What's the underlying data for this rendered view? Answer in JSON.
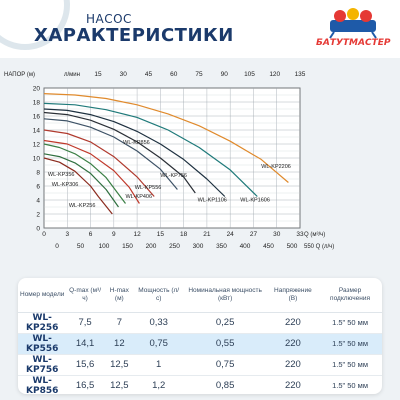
{
  "header": {
    "line1": "НАСОС",
    "line2": "ХАРАКТЕРИСТИКИ",
    "logo_text": "БАТУТМАСТЕР"
  },
  "chart_data": {
    "type": "line",
    "y_axis_label": "НАПОР (м)",
    "top_axis_label": "л/мин",
    "top_axis_ticks": [
      "15",
      "30",
      "45",
      "60",
      "75",
      "90",
      "105",
      "120",
      "135"
    ],
    "x_axis_label_1": "Q (м³/ч)",
    "x_axis_ticks_1": [
      "0",
      "3",
      "6",
      "9",
      "12",
      "15",
      "18",
      "21",
      "24",
      "27",
      "30",
      "33"
    ],
    "x_axis_label_2": "550 Q (л/ч)",
    "x_axis_ticks_2": [
      "0",
      "50",
      "100",
      "150",
      "200",
      "250",
      "300",
      "350",
      "400",
      "450",
      "500"
    ],
    "y_ticks": [
      "0",
      "2",
      "4",
      "6",
      "8",
      "10",
      "12",
      "14",
      "16",
      "18",
      "20"
    ],
    "xlim": [
      0,
      33
    ],
    "ylim": [
      0,
      20
    ],
    "grid": true,
    "series": [
      {
        "name": "WL-KP256",
        "color": "#8b2b1e",
        "label_xy": [
          3.2,
          3.0
        ],
        "x": [
          0,
          2,
          4,
          6,
          7,
          8.8
        ],
        "y": [
          10,
          9.4,
          8.1,
          6,
          4.5,
          2
        ]
      },
      {
        "name": "WL-KP306",
        "color": "#2f6f3f",
        "label_xy": [
          1.0,
          6.0
        ],
        "x": [
          0,
          2,
          4,
          6,
          8,
          9.6
        ],
        "y": [
          10.6,
          10.2,
          9.3,
          7.8,
          5.5,
          3
        ]
      },
      {
        "name": "WL-KP356",
        "color": "#3a7f45",
        "label_xy": [
          0.5,
          7.4
        ],
        "x": [
          0,
          2,
          4,
          6,
          8,
          10.5
        ],
        "y": [
          12,
          11.5,
          10.6,
          9.2,
          7.2,
          3.5
        ]
      },
      {
        "name": "WL-KP406",
        "color": "#c0392b",
        "label_xy": [
          10.5,
          4.3
        ],
        "x": [
          0,
          3,
          6,
          9,
          11,
          12.3
        ],
        "y": [
          12.5,
          12,
          10.6,
          8.2,
          5.8,
          3.5
        ]
      },
      {
        "name": "WL-KP556",
        "color": "#b03a2e",
        "label_xy": [
          11.7,
          5.6
        ],
        "x": [
          0,
          3,
          6,
          9,
          12,
          14.2
        ],
        "y": [
          14,
          13.5,
          12.3,
          10.2,
          7.3,
          4.5
        ]
      },
      {
        "name": "WL-KP756",
        "color": "#3d5266",
        "label_xy": [
          15.0,
          7.3
        ],
        "x": [
          0,
          3,
          6,
          9,
          12,
          15,
          17.2
        ],
        "y": [
          15.6,
          15.3,
          14.4,
          13,
          11,
          8.4,
          5.5
        ]
      },
      {
        "name": "WL-KP856",
        "color": "#2a2f36",
        "label_xy": [
          10.2,
          12.0
        ],
        "x": [
          0,
          3,
          6,
          9,
          12,
          15,
          18,
          19.5
        ],
        "y": [
          16.5,
          16.2,
          15.4,
          14.1,
          12.3,
          10,
          7.3,
          5
        ]
      },
      {
        "name": "WL-KP1106",
        "color": "#1e3140",
        "label_xy": [
          19.8,
          3.8
        ],
        "x": [
          0,
          3,
          6,
          9,
          12,
          15,
          18,
          21,
          23.3
        ],
        "y": [
          17,
          16.8,
          16.2,
          15.2,
          13.8,
          12,
          9.8,
          7,
          4.5
        ]
      },
      {
        "name": "WL-KP1606",
        "color": "#1f7a7a",
        "label_xy": [
          25.3,
          3.8
        ],
        "x": [
          0,
          4,
          8,
          12,
          16,
          20,
          24,
          27.5
        ],
        "y": [
          17.8,
          17.6,
          16.9,
          15.8,
          14,
          11.5,
          8.3,
          4.5
        ]
      },
      {
        "name": "WL-KP2206",
        "color": "#e08a2c",
        "label_xy": [
          28.0,
          8.6
        ],
        "x": [
          0,
          4,
          8,
          12,
          16,
          20,
          24,
          28,
          31.5
        ],
        "y": [
          19.2,
          19,
          18.5,
          17.6,
          16.3,
          14.6,
          12.4,
          9.8,
          6.5
        ]
      }
    ]
  },
  "table": {
    "headers": [
      "Номер модели",
      "Q-max (м³/ч)",
      "H-max (м)",
      "Мощность (л/с)",
      "Номинальная мощность (кВт)",
      "Напряжение (В)",
      "Размер подключения"
    ],
    "rows": [
      [
        "WL-KP256",
        "7,5",
        "7",
        "0,33",
        "0,25",
        "220",
        "1.5\" 50 мм"
      ],
      [
        "WL-KP556",
        "14,1",
        "12",
        "0,75",
        "0,55",
        "220",
        "1.5\" 50 мм"
      ],
      [
        "WL-KP756",
        "15,6",
        "12,5",
        "1",
        "0,75",
        "220",
        "1.5\" 50 мм"
      ],
      [
        "WL-KP856",
        "16,5",
        "12,5",
        "1,2",
        "0,85",
        "220",
        "1.5\" 50 мм"
      ]
    ]
  }
}
